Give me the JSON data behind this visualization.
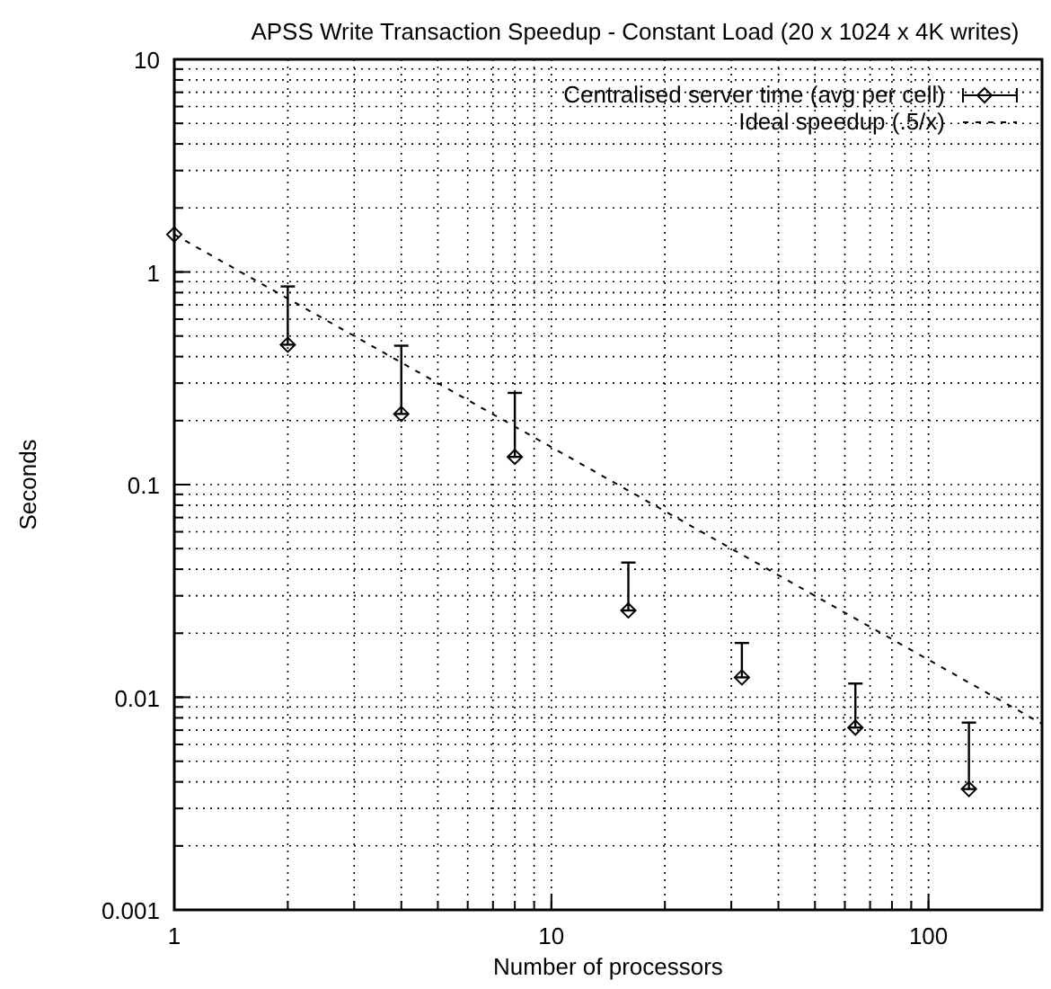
{
  "chart_data": {
    "type": "scatter",
    "title": "APSS Write Transaction Speedup - Constant Load (20 x 1024 x 4K writes)",
    "xlabel": "Number of processors",
    "ylabel": "Seconds",
    "log": "xy",
    "grid": true,
    "legend": "top right",
    "xlim": [
      1,
      200
    ],
    "xticks": [
      1,
      10,
      100
    ],
    "ylim": [
      0.001,
      10
    ],
    "yticks": [
      0.001,
      0.01,
      0.1,
      1,
      10
    ],
    "series": [
      {
        "name": "Centralised server time (avg per cell)",
        "color": "#000000",
        "marker": "diamond",
        "x": [
          1,
          2,
          4,
          8,
          16,
          32,
          64,
          128
        ],
        "values": [
          1.5,
          0.455,
          0.215,
          0.135,
          0.0256,
          0.0124,
          0.0072,
          0.0037
        ],
        "errors": [
          null,
          [
            0.455,
            0.855
          ],
          [
            0.215,
            0.45
          ],
          [
            0.135,
            0.27
          ],
          [
            0.0256,
            0.043
          ],
          [
            0.0124,
            0.018
          ],
          [
            0.0072,
            0.0116
          ],
          [
            0.0037,
            0.0076
          ]
        ]
      },
      {
        "name": "Ideal speedup (.5/x)",
        "type": "line",
        "color": "#000000",
        "line_style": "dashed",
        "x": [
          1,
          200
        ],
        "values": [
          1.5,
          0.0075
        ]
      }
    ]
  }
}
